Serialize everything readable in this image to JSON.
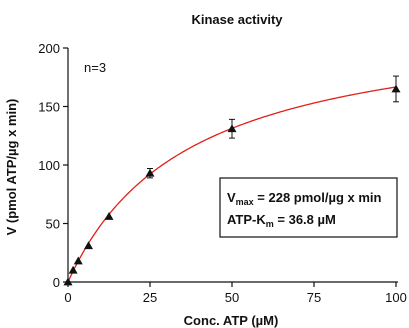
{
  "chart_data": {
    "type": "scatter",
    "title": "Kinase activity",
    "xlabel": "Conc. ATP (µM)",
    "ylabel": "V (pmol ATP/µg x min)",
    "annotation_n": "n=3",
    "xlim": [
      0,
      100
    ],
    "ylim": [
      0,
      200
    ],
    "xticks": [
      0,
      25,
      50,
      75,
      100
    ],
    "yticks": [
      0,
      50,
      100,
      150,
      200
    ],
    "grid": false,
    "series": [
      {
        "marker": "triangle",
        "points": [
          {
            "x": 0,
            "y": 0,
            "err": 0
          },
          {
            "x": 1.56,
            "y": 10,
            "err": 0
          },
          {
            "x": 3.13,
            "y": 18,
            "err": 0
          },
          {
            "x": 6.25,
            "y": 31,
            "err": 0
          },
          {
            "x": 12.5,
            "y": 56,
            "err": 0
          },
          {
            "x": 25,
            "y": 93,
            "err": 4
          },
          {
            "x": 50,
            "y": 131,
            "err": 8
          },
          {
            "x": 100,
            "y": 165,
            "err": 11
          }
        ]
      }
    ],
    "fit": {
      "model": "michaelis-menten",
      "vmax": 228,
      "km": 36.8,
      "color": "#e0201a"
    },
    "textbox": {
      "vmax_main": "V",
      "vmax_sub": "max",
      "vmax_value": " = 228 pmol/µg x min",
      "km_main": "ATP-K",
      "km_sub": "m",
      "km_value": " = 36.8 µM"
    }
  }
}
